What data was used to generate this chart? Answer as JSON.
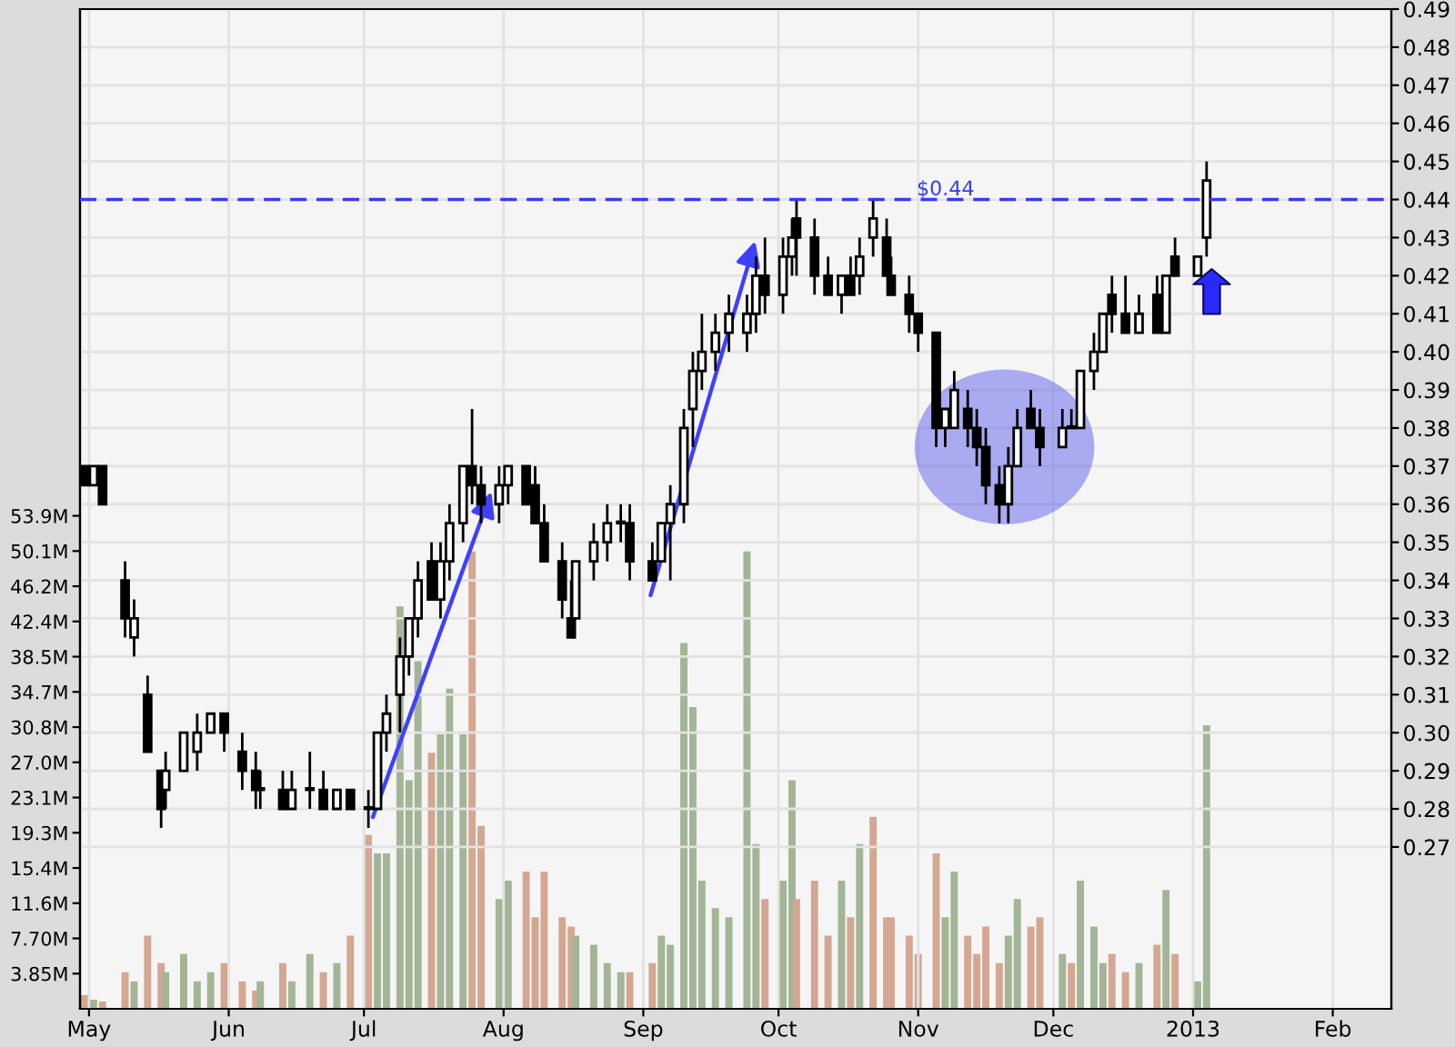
{
  "chart_data": {
    "type": "candlestick",
    "x": [
      "2012-04-30",
      "2012-05-02",
      "2012-05-04",
      "2012-05-09",
      "2012-05-11",
      "2012-05-14",
      "2012-05-17",
      "2012-05-18",
      "2012-05-22",
      "2012-05-25",
      "2012-05-28",
      "2012-05-31",
      "2012-06-04",
      "2012-06-07",
      "2012-06-08",
      "2012-06-13",
      "2012-06-15",
      "2012-06-19",
      "2012-06-22",
      "2012-06-25",
      "2012-06-28",
      "2012-07-02",
      "2012-07-04",
      "2012-07-06",
      "2012-07-09",
      "2012-07-11",
      "2012-07-13",
      "2012-07-16",
      "2012-07-18",
      "2012-07-20",
      "2012-07-23",
      "2012-07-25",
      "2012-07-27",
      "2012-07-31",
      "2012-08-02",
      "2012-08-06",
      "2012-08-08",
      "2012-08-10",
      "2012-08-14",
      "2012-08-16",
      "2012-08-17",
      "2012-08-21",
      "2012-08-24",
      "2012-08-27",
      "2012-08-29",
      "2012-09-03",
      "2012-09-05",
      "2012-09-07",
      "2012-09-10",
      "2012-09-12",
      "2012-09-14",
      "2012-09-17",
      "2012-09-20",
      "2012-09-24",
      "2012-09-26",
      "2012-09-28",
      "2012-10-02",
      "2012-10-04",
      "2012-10-05",
      "2012-10-09",
      "2012-10-12",
      "2012-10-15",
      "2012-10-17",
      "2012-10-19",
      "2012-10-22",
      "2012-10-25",
      "2012-10-26",
      "2012-10-30",
      "2012-11-01",
      "2012-11-05",
      "2012-11-07",
      "2012-11-09",
      "2012-11-12",
      "2012-11-14",
      "2012-11-16",
      "2012-11-19",
      "2012-11-21",
      "2012-11-23",
      "2012-11-26",
      "2012-11-28",
      "2012-12-03",
      "2012-12-05",
      "2012-12-07",
      "2012-12-10",
      "2012-12-12",
      "2012-12-14",
      "2012-12-17",
      "2012-12-20",
      "2012-12-24",
      "2012-12-26",
      "2012-12-28",
      "2013-01-02",
      "2013-01-04"
    ],
    "ohlc": [
      [
        0.37,
        0.37,
        0.365,
        0.365
      ],
      [
        0.365,
        0.37,
        0.365,
        0.37
      ],
      [
        0.37,
        0.37,
        0.36,
        0.36
      ],
      [
        0.34,
        0.345,
        0.325,
        0.33
      ],
      [
        0.325,
        0.335,
        0.32,
        0.33
      ],
      [
        0.31,
        0.315,
        0.295,
        0.295
      ],
      [
        0.29,
        0.29,
        0.275,
        0.28
      ],
      [
        0.285,
        0.295,
        0.28,
        0.29
      ],
      [
        0.29,
        0.3,
        0.29,
        0.3
      ],
      [
        0.295,
        0.305,
        0.29,
        0.3
      ],
      [
        0.3,
        0.305,
        0.3,
        0.305
      ],
      [
        0.305,
        0.305,
        0.295,
        0.3
      ],
      [
        0.295,
        0.3,
        0.285,
        0.29
      ],
      [
        0.29,
        0.295,
        0.28,
        0.285
      ],
      [
        0.285,
        0.29,
        0.28,
        0.285
      ],
      [
        0.285,
        0.29,
        0.28,
        0.28
      ],
      [
        0.28,
        0.29,
        0.28,
        0.285
      ],
      [
        0.285,
        0.295,
        0.28,
        0.285
      ],
      [
        0.285,
        0.29,
        0.28,
        0.28
      ],
      [
        0.28,
        0.285,
        0.28,
        0.285
      ],
      [
        0.285,
        0.285,
        0.28,
        0.28
      ],
      [
        0.28,
        0.285,
        0.275,
        0.28
      ],
      [
        0.28,
        0.3,
        0.28,
        0.3
      ],
      [
        0.3,
        0.31,
        0.295,
        0.305
      ],
      [
        0.31,
        0.325,
        0.3,
        0.32
      ],
      [
        0.32,
        0.33,
        0.315,
        0.33
      ],
      [
        0.33,
        0.345,
        0.325,
        0.34
      ],
      [
        0.345,
        0.35,
        0.335,
        0.335
      ],
      [
        0.335,
        0.35,
        0.33,
        0.345
      ],
      [
        0.345,
        0.36,
        0.34,
        0.355
      ],
      [
        0.355,
        0.37,
        0.35,
        0.37
      ],
      [
        0.37,
        0.385,
        0.36,
        0.365
      ],
      [
        0.365,
        0.37,
        0.355,
        0.36
      ],
      [
        0.36,
        0.37,
        0.355,
        0.365
      ],
      [
        0.365,
        0.37,
        0.36,
        0.37
      ],
      [
        0.37,
        0.37,
        0.36,
        0.36
      ],
      [
        0.365,
        0.37,
        0.355,
        0.355
      ],
      [
        0.355,
        0.36,
        0.345,
        0.345
      ],
      [
        0.345,
        0.35,
        0.33,
        0.335
      ],
      [
        0.33,
        0.34,
        0.325,
        0.325
      ],
      [
        0.33,
        0.345,
        0.33,
        0.345
      ],
      [
        0.345,
        0.355,
        0.34,
        0.35
      ],
      [
        0.35,
        0.36,
        0.345,
        0.355
      ],
      [
        0.355,
        0.36,
        0.35,
        0.355
      ],
      [
        0.355,
        0.36,
        0.34,
        0.345
      ],
      [
        0.345,
        0.35,
        0.34,
        0.34
      ],
      [
        0.345,
        0.355,
        0.345,
        0.355
      ],
      [
        0.355,
        0.365,
        0.34,
        0.36
      ],
      [
        0.36,
        0.385,
        0.355,
        0.38
      ],
      [
        0.385,
        0.4,
        0.375,
        0.395
      ],
      [
        0.395,
        0.41,
        0.39,
        0.4
      ],
      [
        0.4,
        0.41,
        0.395,
        0.405
      ],
      [
        0.405,
        0.415,
        0.4,
        0.41
      ],
      [
        0.405,
        0.415,
        0.4,
        0.41
      ],
      [
        0.41,
        0.425,
        0.405,
        0.42
      ],
      [
        0.42,
        0.43,
        0.41,
        0.415
      ],
      [
        0.415,
        0.43,
        0.41,
        0.425
      ],
      [
        0.425,
        0.435,
        0.42,
        0.43
      ],
      [
        0.435,
        0.44,
        0.42,
        0.43
      ],
      [
        0.43,
        0.435,
        0.415,
        0.42
      ],
      [
        0.42,
        0.425,
        0.415,
        0.415
      ],
      [
        0.415,
        0.42,
        0.41,
        0.42
      ],
      [
        0.42,
        0.425,
        0.415,
        0.415
      ],
      [
        0.42,
        0.43,
        0.415,
        0.425
      ],
      [
        0.43,
        0.44,
        0.425,
        0.435
      ],
      [
        0.43,
        0.435,
        0.42,
        0.42
      ],
      [
        0.42,
        0.425,
        0.415,
        0.415
      ],
      [
        0.415,
        0.42,
        0.405,
        0.41
      ],
      [
        0.41,
        0.41,
        0.4,
        0.405
      ],
      [
        0.405,
        0.405,
        0.375,
        0.38
      ],
      [
        0.38,
        0.385,
        0.375,
        0.385
      ],
      [
        0.38,
        0.395,
        0.38,
        0.39
      ],
      [
        0.385,
        0.39,
        0.375,
        0.38
      ],
      [
        0.38,
        0.385,
        0.37,
        0.375
      ],
      [
        0.375,
        0.38,
        0.36,
        0.365
      ],
      [
        0.365,
        0.37,
        0.355,
        0.36
      ],
      [
        0.36,
        0.375,
        0.355,
        0.37
      ],
      [
        0.37,
        0.385,
        0.37,
        0.38
      ],
      [
        0.385,
        0.39,
        0.38,
        0.38
      ],
      [
        0.38,
        0.385,
        0.37,
        0.375
      ],
      [
        0.375,
        0.385,
        0.375,
        0.38
      ],
      [
        0.38,
        0.385,
        0.38,
        0.38
      ],
      [
        0.38,
        0.395,
        0.38,
        0.395
      ],
      [
        0.395,
        0.405,
        0.39,
        0.4
      ],
      [
        0.4,
        0.41,
        0.4,
        0.41
      ],
      [
        0.415,
        0.42,
        0.405,
        0.41
      ],
      [
        0.41,
        0.42,
        0.405,
        0.405
      ],
      [
        0.405,
        0.415,
        0.405,
        0.41
      ],
      [
        0.415,
        0.42,
        0.405,
        0.405
      ],
      [
        0.405,
        0.42,
        0.405,
        0.42
      ],
      [
        0.425,
        0.43,
        0.42,
        0.42
      ],
      [
        0.42,
        0.425,
        0.42,
        0.425
      ],
      [
        0.43,
        0.45,
        0.425,
        0.445
      ]
    ],
    "series": [
      {
        "type": "bar",
        "axis": "y2",
        "values": [
          1.5,
          1,
          0.8,
          4,
          3,
          8,
          5,
          4,
          6,
          3,
          4,
          5,
          3,
          2,
          3,
          5,
          3,
          6,
          4,
          5,
          8,
          19,
          17,
          17,
          44,
          25,
          38,
          28,
          30,
          35,
          30,
          50,
          20,
          12,
          14,
          15,
          10,
          15,
          10,
          9,
          8,
          7,
          5,
          4,
          4,
          5,
          8,
          7,
          40,
          33,
          14,
          11,
          10,
          50,
          18,
          12,
          14,
          25,
          12,
          14,
          8,
          14,
          10,
          18,
          21,
          10,
          10,
          8,
          6,
          17,
          10,
          15,
          8,
          6,
          9,
          5,
          8,
          12,
          9,
          10,
          6,
          5,
          14,
          9,
          5,
          6,
          4,
          5,
          7,
          13,
          6,
          3,
          31
        ],
        "colors": [
          "#d4a792",
          "#a3b596",
          "#d4a792",
          "#d4a792",
          "#a3b596",
          "#d4a792",
          "#d4a792",
          "#a3b596",
          "#a3b596",
          "#a3b596",
          "#a3b596",
          "#d4a792",
          "#d4a792",
          "#d4a792",
          "#a3b596",
          "#d4a792",
          "#a3b596",
          "#a3b596",
          "#d4a792",
          "#a3b596",
          "#d4a792",
          "#d4a792",
          "#a3b596",
          "#a3b596",
          "#a3b596",
          "#a3b596",
          "#a3b596",
          "#d4a792",
          "#a3b596",
          "#a3b596",
          "#a3b596",
          "#d4a792",
          "#d4a792",
          "#a3b596",
          "#a3b596",
          "#d4a792",
          "#d4a792",
          "#d4a792",
          "#d4a792",
          "#d4a792",
          "#a3b596",
          "#a3b596",
          "#a3b596",
          "#a3b596",
          "#d4a792",
          "#d4a792",
          "#a3b596",
          "#a3b596",
          "#a3b596",
          "#a3b596",
          "#a3b596",
          "#a3b596",
          "#a3b596",
          "#a3b596",
          "#a3b596",
          "#d4a792",
          "#a3b596",
          "#a3b596",
          "#d4a792",
          "#d4a792",
          "#d4a792",
          "#a3b596",
          "#d4a792",
          "#a3b596",
          "#d4a792",
          "#d4a792",
          "#d4a792",
          "#d4a792",
          "#d4a792",
          "#d4a792",
          "#a3b596",
          "#a3b596",
          "#d4a792",
          "#d4a792",
          "#d4a792",
          "#d4a792",
          "#a3b596",
          "#a3b596",
          "#d4a792",
          "#d4a792",
          "#a3b596",
          "#d4a792",
          "#a3b596",
          "#a3b596",
          "#a3b596",
          "#d4a792",
          "#d4a792",
          "#a3b596",
          "#d4a792",
          "#a3b596",
          "#d4a792",
          "#a3b596",
          "#a3b596"
        ]
      }
    ],
    "xlim": [
      "2012-04-29",
      "2013-02-14"
    ],
    "xticks": [
      {
        "value": "2012-05-01",
        "label": "May"
      },
      {
        "value": "2012-06-01",
        "label": "Jun"
      },
      {
        "value": "2012-07-01",
        "label": "Jul"
      },
      {
        "value": "2012-08-01",
        "label": "Aug"
      },
      {
        "value": "2012-09-01",
        "label": "Sep"
      },
      {
        "value": "2012-10-01",
        "label": "Oct"
      },
      {
        "value": "2012-11-01",
        "label": "Nov"
      },
      {
        "value": "2012-12-01",
        "label": "Dec"
      },
      {
        "value": "2013-01-01",
        "label": "2013"
      },
      {
        "value": "2013-02-01",
        "label": "Feb"
      }
    ],
    "ylim": [
      0.2275,
      0.49
    ],
    "yticks": [
      0.27,
      0.28,
      0.29,
      {
        "value": 0.3,
        "label": "0.30"
      },
      0.31,
      0.32,
      0.33,
      0.34,
      0.35,
      0.36,
      0.37,
      0.38,
      0.39,
      {
        "value": 0.4,
        "label": "0.40"
      },
      0.41,
      0.42,
      0.43,
      0.44,
      0.45,
      0.46,
      0.47,
      0.48,
      0.49
    ],
    "y2lim": [
      0,
      109.3
    ],
    "y2ticks": [
      {
        "value": 3.85,
        "label": "3.85M"
      },
      {
        "value": 7.7,
        "label": "7.70M"
      },
      {
        "value": 11.55,
        "label": "11.6M"
      },
      {
        "value": 15.4,
        "label": "15.4M"
      },
      {
        "value": 19.25,
        "label": "19.3M"
      },
      {
        "value": 23.1,
        "label": "23.1M"
      },
      {
        "value": 26.95,
        "label": "27.0M"
      },
      {
        "value": 30.8,
        "label": "30.8M"
      },
      {
        "value": 34.65,
        "label": "34.7M"
      },
      {
        "value": 38.5,
        "label": "38.5M"
      },
      {
        "value": 42.35,
        "label": "42.4M"
      },
      {
        "value": 46.2,
        "label": "46.2M"
      },
      {
        "value": 50.05,
        "label": "50.1M"
      },
      {
        "value": 53.9,
        "label": "53.9M"
      }
    ],
    "ref_lines": [
      {
        "axis": "y",
        "value": 0.44,
        "label": "$0.44",
        "color": "#3a3af0",
        "line_style": "dashed"
      }
    ],
    "grid": true
  }
}
